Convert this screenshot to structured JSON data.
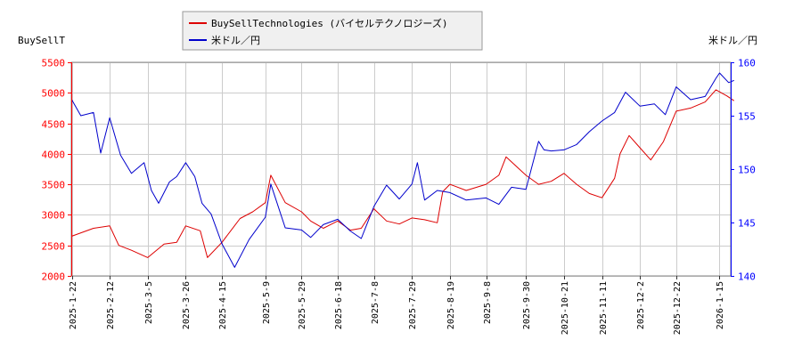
{
  "chart_data": {
    "type": "line",
    "left_axis_label": "BuySellT",
    "right_axis_label": "米ドル／円",
    "left_ylim": [
      2000,
      5500
    ],
    "left_yticks": [
      2000,
      2500,
      3000,
      3500,
      4000,
      4500,
      5000,
      5500
    ],
    "right_ylim": [
      140,
      160
    ],
    "right_yticks": [
      140,
      145,
      150,
      155,
      160
    ],
    "grid": true,
    "legend_position": "top-center",
    "x_ticks": [
      "2025-1-22",
      "2025-2-12",
      "2025-3-5",
      "2025-3-26",
      "2025-4-15",
      "2025-5-9",
      "2025-5-29",
      "2025-6-18",
      "2025-7-8",
      "2025-7-29",
      "2025-8-19",
      "2025-9-8",
      "2025-9-30",
      "2025-10-21",
      "2025-11-11",
      "2025-12-2",
      "2025-12-22",
      "2026-1-15"
    ],
    "series": [
      {
        "name": "BuySellTechnologies (バイセルテクノロジーズ)",
        "axis": "left",
        "color": "#dd0000",
        "points": [
          [
            "2025-1-22",
            2650
          ],
          [
            "2025-2-3",
            2780
          ],
          [
            "2025-2-12",
            2820
          ],
          [
            "2025-2-17",
            2500
          ],
          [
            "2025-2-24",
            2420
          ],
          [
            "2025-3-5",
            2300
          ],
          [
            "2025-3-14",
            2520
          ],
          [
            "2025-3-21",
            2550
          ],
          [
            "2025-3-26",
            2820
          ],
          [
            "2025-4-3",
            2740
          ],
          [
            "2025-4-7",
            2300
          ],
          [
            "2025-4-15",
            2550
          ],
          [
            "2025-4-25",
            2940
          ],
          [
            "2025-5-2",
            3050
          ],
          [
            "2025-5-9",
            3200
          ],
          [
            "2025-5-12",
            3650
          ],
          [
            "2025-5-20",
            3200
          ],
          [
            "2025-5-29",
            3050
          ],
          [
            "2025-6-3",
            2900
          ],
          [
            "2025-6-10",
            2780
          ],
          [
            "2025-6-18",
            2900
          ],
          [
            "2025-6-25",
            2750
          ],
          [
            "2025-7-1",
            2780
          ],
          [
            "2025-7-8",
            3100
          ],
          [
            "2025-7-15",
            2900
          ],
          [
            "2025-7-22",
            2850
          ],
          [
            "2025-7-29",
            2950
          ],
          [
            "2025-8-5",
            2920
          ],
          [
            "2025-8-12",
            2870
          ],
          [
            "2025-8-15",
            3380
          ],
          [
            "2025-8-19",
            3500
          ],
          [
            "2025-8-28",
            3400
          ],
          [
            "2025-9-8",
            3500
          ],
          [
            "2025-9-15",
            3650
          ],
          [
            "2025-9-19",
            3950
          ],
          [
            "2025-9-30",
            3650
          ],
          [
            "2025-10-7",
            3500
          ],
          [
            "2025-10-14",
            3550
          ],
          [
            "2025-10-21",
            3680
          ],
          [
            "2025-10-28",
            3500
          ],
          [
            "2025-11-4",
            3350
          ],
          [
            "2025-11-11",
            3280
          ],
          [
            "2025-11-18",
            3600
          ],
          [
            "2025-11-21",
            4000
          ],
          [
            "2025-11-26",
            4300
          ],
          [
            "2025-12-2",
            4100
          ],
          [
            "2025-12-8",
            3900
          ],
          [
            "2025-12-15",
            4200
          ],
          [
            "2025-12-22",
            4700
          ],
          [
            "2025-12-30",
            4750
          ],
          [
            "2026-1-7",
            4850
          ],
          [
            "2026-1-13",
            5050
          ],
          [
            "2026-1-19",
            4950
          ],
          [
            "2026-1-23",
            4870
          ]
        ]
      },
      {
        "name": "米ドル／円",
        "axis": "right",
        "color": "#0000cc",
        "points": [
          [
            "2025-1-22",
            156.5
          ],
          [
            "2025-1-27",
            155.0
          ],
          [
            "2025-2-3",
            155.3
          ],
          [
            "2025-2-7",
            151.5
          ],
          [
            "2025-2-12",
            154.8
          ],
          [
            "2025-2-18",
            151.3
          ],
          [
            "2025-2-24",
            149.6
          ],
          [
            "2025-3-3",
            150.6
          ],
          [
            "2025-3-7",
            148.0
          ],
          [
            "2025-3-11",
            146.8
          ],
          [
            "2025-3-17",
            148.8
          ],
          [
            "2025-3-21",
            149.3
          ],
          [
            "2025-3-26",
            150.6
          ],
          [
            "2025-3-31",
            149.3
          ],
          [
            "2025-4-4",
            146.8
          ],
          [
            "2025-4-9",
            145.8
          ],
          [
            "2025-4-15",
            143.0
          ],
          [
            "2025-4-22",
            140.8
          ],
          [
            "2025-4-30",
            143.4
          ],
          [
            "2025-5-9",
            145.5
          ],
          [
            "2025-5-12",
            148.6
          ],
          [
            "2025-5-20",
            144.5
          ],
          [
            "2025-5-29",
            144.3
          ],
          [
            "2025-6-3",
            143.6
          ],
          [
            "2025-6-10",
            144.8
          ],
          [
            "2025-6-18",
            145.3
          ],
          [
            "2025-6-25",
            144.2
          ],
          [
            "2025-7-1",
            143.5
          ],
          [
            "2025-7-8",
            146.5
          ],
          [
            "2025-7-15",
            148.5
          ],
          [
            "2025-7-22",
            147.2
          ],
          [
            "2025-7-29",
            148.6
          ],
          [
            "2025-8-1",
            150.6
          ],
          [
            "2025-8-5",
            147.1
          ],
          [
            "2025-8-12",
            148.0
          ],
          [
            "2025-8-19",
            147.8
          ],
          [
            "2025-8-28",
            147.1
          ],
          [
            "2025-9-8",
            147.3
          ],
          [
            "2025-9-15",
            146.7
          ],
          [
            "2025-9-22",
            148.3
          ],
          [
            "2025-9-30",
            148.1
          ],
          [
            "2025-10-7",
            152.6
          ],
          [
            "2025-10-10",
            151.8
          ],
          [
            "2025-10-14",
            151.7
          ],
          [
            "2025-10-21",
            151.8
          ],
          [
            "2025-10-28",
            152.3
          ],
          [
            "2025-11-4",
            153.5
          ],
          [
            "2025-11-11",
            154.5
          ],
          [
            "2025-11-18",
            155.3
          ],
          [
            "2025-11-24",
            157.2
          ],
          [
            "2025-12-2",
            155.9
          ],
          [
            "2025-12-10",
            156.1
          ],
          [
            "2025-12-16",
            155.1
          ],
          [
            "2025-12-22",
            157.7
          ],
          [
            "2025-12-30",
            156.5
          ],
          [
            "2026-1-7",
            156.8
          ],
          [
            "2026-1-13",
            158.5
          ],
          [
            "2026-1-15",
            159.0
          ],
          [
            "2026-1-20",
            158.1
          ],
          [
            "2026-1-23",
            158.3
          ]
        ]
      }
    ]
  }
}
